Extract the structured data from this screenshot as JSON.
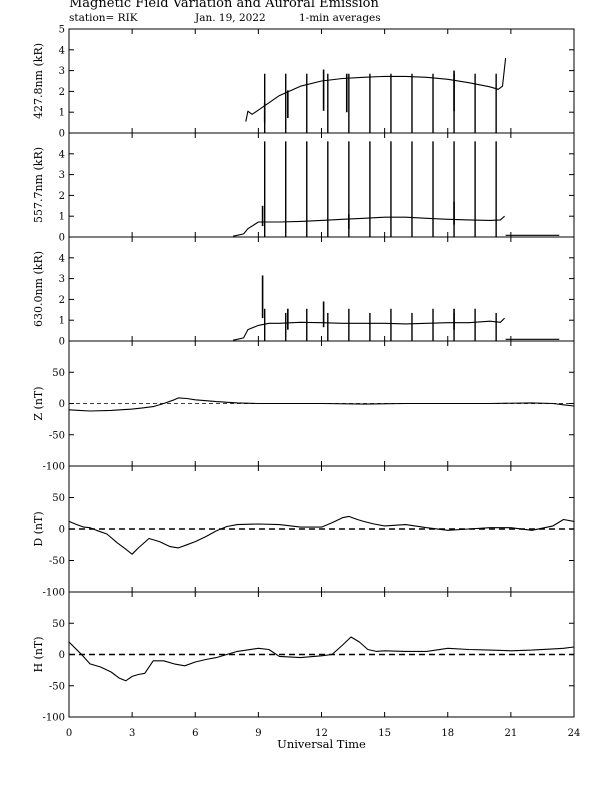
{
  "header": {
    "title": "Magnetic Field Variation and Auroral Emission",
    "station": "station= RIK",
    "date": "Jan. 19, 2022",
    "averaging": "1-min averages"
  },
  "colors": {
    "ink": "#000000",
    "background": "#ffffff"
  },
  "chart_data": [
    {
      "type": "line",
      "ylabel": "427.8nm (kR)",
      "ylim": [
        0,
        5
      ],
      "yticks": [
        0,
        1,
        2,
        3,
        4,
        5
      ],
      "xlim": [
        0,
        24
      ],
      "grid": false,
      "zero_dashed": false,
      "series": [
        {
          "x": [
            8.4,
            8.5,
            8.7,
            9.0,
            9.5,
            10.0,
            11.0,
            12.0,
            13.0,
            14.0,
            15.0,
            16.0,
            17.0,
            18.0,
            19.0,
            20.0,
            20.4,
            20.6,
            20.75
          ],
          "y": [
            0.55,
            1.05,
            0.9,
            1.1,
            1.45,
            1.8,
            2.25,
            2.5,
            2.62,
            2.68,
            2.72,
            2.72,
            2.68,
            2.58,
            2.42,
            2.22,
            2.1,
            2.25,
            3.6
          ]
        }
      ],
      "spikes": [
        {
          "x": 9.3,
          "y": 1.45
        },
        {
          "x": 10.4,
          "y": 2.05
        },
        {
          "x": 12.1,
          "y": 3.05
        },
        {
          "x": 13.2,
          "y": 2.85
        },
        {
          "x": 18.3,
          "y": 3.0
        }
      ]
    },
    {
      "type": "line",
      "ylabel": "557.7nm (kR)",
      "ylim": [
        0,
        5
      ],
      "yticks": [
        0,
        1,
        2,
        3,
        4
      ],
      "xlim": [
        0,
        24
      ],
      "grid": false,
      "zero_dashed": false,
      "series": [
        {
          "x": [
            7.8,
            8.0,
            8.3,
            8.5,
            9.0,
            10.0,
            11.0,
            12.0,
            13.0,
            14.0,
            15.0,
            16.0,
            17.0,
            18.0,
            19.0,
            20.0,
            20.5,
            20.7
          ],
          "y": [
            0.04,
            0.08,
            0.15,
            0.4,
            0.72,
            0.72,
            0.75,
            0.8,
            0.85,
            0.9,
            0.95,
            0.95,
            0.9,
            0.85,
            0.82,
            0.8,
            0.82,
            1.0
          ]
        },
        {
          "x": [
            20.75,
            21.0,
            22.0,
            23.0,
            23.3
          ],
          "y": [
            0.08,
            0.08,
            0.08,
            0.08,
            0.08
          ]
        }
      ],
      "spikes": [
        {
          "x": 9.2,
          "y": 1.5
        },
        {
          "x": 13.3,
          "y": 1.1
        },
        {
          "x": 18.3,
          "y": 1.7
        }
      ]
    },
    {
      "type": "line",
      "ylabel": "630.0nm (kR)",
      "ylim": [
        0,
        5
      ],
      "yticks": [
        0,
        1,
        2,
        3,
        4
      ],
      "xlim": [
        0,
        24
      ],
      "grid": false,
      "zero_dashed": false,
      "series": [
        {
          "x": [
            7.8,
            8.0,
            8.3,
            8.5,
            9.0,
            9.5,
            10.0,
            11.0,
            12.0,
            13.0,
            14.0,
            15.0,
            16.0,
            17.0,
            18.0,
            19.0,
            20.0,
            20.5,
            20.7
          ],
          "y": [
            0.04,
            0.08,
            0.15,
            0.55,
            0.75,
            0.85,
            0.85,
            0.9,
            0.88,
            0.85,
            0.85,
            0.85,
            0.82,
            0.85,
            0.88,
            0.88,
            0.95,
            0.9,
            1.1
          ]
        },
        {
          "x": [
            20.75,
            21.0,
            22.0,
            23.0,
            23.3
          ],
          "y": [
            0.08,
            0.08,
            0.08,
            0.08,
            0.08
          ]
        }
      ],
      "spikes": [
        {
          "x": 9.2,
          "y": 3.15
        },
        {
          "x": 10.4,
          "y": 1.55
        },
        {
          "x": 12.1,
          "y": 1.9
        },
        {
          "x": 18.3,
          "y": 1.55
        }
      ]
    },
    {
      "type": "line",
      "ylabel": "Z (nT)",
      "ylim": [
        -100,
        100
      ],
      "yticks": [
        -100,
        -50,
        0,
        50
      ],
      "xlim": [
        0,
        24
      ],
      "grid": false,
      "zero_dashed": true,
      "series": [
        {
          "x": [
            0,
            0.5,
            1,
            2,
            3,
            3.5,
            4,
            4.5,
            5,
            5.2,
            5.6,
            6,
            7,
            8,
            9,
            10,
            12,
            14,
            16,
            18,
            20,
            22,
            23,
            23.5,
            24
          ],
          "y": [
            -10,
            -11,
            -12,
            -11,
            -9,
            -7,
            -5,
            0,
            6,
            9,
            8,
            6,
            3,
            1,
            0,
            0,
            0,
            -1,
            0,
            0,
            0,
            1,
            0,
            -2,
            -4
          ]
        }
      ]
    },
    {
      "type": "line",
      "ylabel": "D (nT)",
      "ylim": [
        -100,
        100
      ],
      "yticks": [
        -100,
        -50,
        0,
        50
      ],
      "xlim": [
        0,
        24
      ],
      "grid": false,
      "zero_dashed": true,
      "series": [
        {
          "x": [
            0,
            0.3,
            0.7,
            1.0,
            1.3,
            1.8,
            2.3,
            2.7,
            3.0,
            3.3,
            3.8,
            4.3,
            4.8,
            5.2,
            5.6,
            6.0,
            6.5,
            7.0,
            7.5,
            8.0,
            9.0,
            10.0,
            11.0,
            12.0,
            12.5,
            13.0,
            13.3,
            13.7,
            14.0,
            14.5,
            15.0,
            16.0,
            17.0,
            18.0,
            19.0,
            20.0,
            21.0,
            22.0,
            23.0,
            23.5,
            24.0
          ],
          "y": [
            12,
            8,
            3,
            2,
            -2,
            -8,
            -22,
            -32,
            -40,
            -30,
            -15,
            -20,
            -28,
            -30,
            -25,
            -20,
            -12,
            -3,
            4,
            7,
            8,
            7,
            3,
            3,
            10,
            18,
            20,
            15,
            12,
            8,
            5,
            7,
            2,
            -2,
            0,
            2,
            2,
            -2,
            5,
            15,
            12
          ]
        }
      ]
    },
    {
      "type": "line",
      "ylabel": "H (nT)",
      "ylim": [
        -100,
        100
      ],
      "yticks": [
        -100,
        -50,
        0,
        50
      ],
      "xlim": [
        0,
        24
      ],
      "grid": false,
      "zero_dashed": true,
      "series": [
        {
          "x": [
            0,
            0.3,
            0.6,
            1.0,
            1.5,
            2.0,
            2.4,
            2.7,
            3.0,
            3.3,
            3.6,
            4.0,
            4.5,
            5.0,
            5.5,
            6.0,
            6.5,
            7.0,
            8.0,
            9.0,
            9.5,
            10.0,
            11.0,
            12.0,
            12.5,
            13.0,
            13.4,
            13.8,
            14.2,
            14.6,
            15.0,
            16.0,
            17.0,
            18.0,
            19.0,
            20.0,
            21.0,
            22.0,
            23.0,
            23.5,
            24.0
          ],
          "y": [
            20,
            10,
            0,
            -15,
            -20,
            -28,
            -38,
            -42,
            -35,
            -32,
            -30,
            -10,
            -10,
            -15,
            -18,
            -12,
            -8,
            -5,
            5,
            10,
            8,
            -3,
            -5,
            -2,
            0,
            15,
            28,
            20,
            8,
            5,
            6,
            5,
            5,
            10,
            8,
            7,
            6,
            7,
            9,
            10,
            12
          ]
        }
      ]
    }
  ],
  "x_axis": {
    "label": "Universal Time",
    "ticks": [
      0,
      3,
      6,
      9,
      12,
      15,
      18,
      21,
      24
    ]
  }
}
